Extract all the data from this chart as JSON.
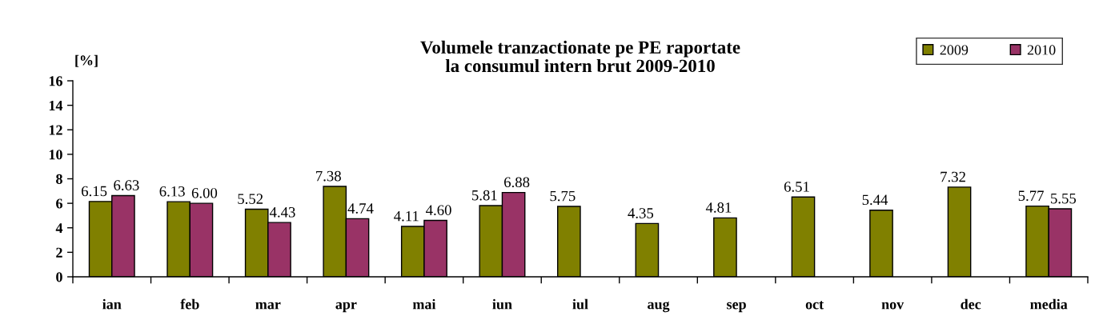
{
  "chart_data": {
    "type": "bar",
    "title": "Volumele tranzactionate pe PE raportate\nla consumul intern brut 2009-2010",
    "ylabel": "[%]",
    "categories": [
      "ian",
      "feb",
      "mar",
      "apr",
      "mai",
      "iun",
      "iul",
      "aug",
      "sep",
      "oct",
      "nov",
      "dec",
      "media"
    ],
    "series": [
      {
        "name": "2009",
        "color": "#808000",
        "values": [
          6.15,
          6.13,
          5.52,
          7.38,
          4.11,
          5.81,
          5.75,
          4.35,
          4.81,
          6.51,
          5.44,
          7.32,
          5.77
        ],
        "value_labels": [
          "6.15",
          "6.13",
          "5.52",
          "7.38",
          "4.11",
          "5.81",
          "5.75",
          "4.35",
          "4.81",
          "6.51",
          "5.44",
          "7.32",
          "5.77"
        ]
      },
      {
        "name": "2010",
        "color": "#993366",
        "values": [
          6.63,
          6.0,
          4.43,
          4.74,
          4.6,
          6.88,
          null,
          null,
          null,
          null,
          null,
          null,
          5.55
        ],
        "value_labels": [
          "6.63",
          "6.00",
          "4.43",
          "4.74",
          "4.60",
          "6.88",
          null,
          null,
          null,
          null,
          null,
          null,
          "5.55"
        ]
      }
    ],
    "ylim": [
      0,
      16
    ],
    "yticks": [
      0,
      2,
      4,
      6,
      8,
      10,
      12,
      14,
      16
    ],
    "legend": "top right"
  }
}
